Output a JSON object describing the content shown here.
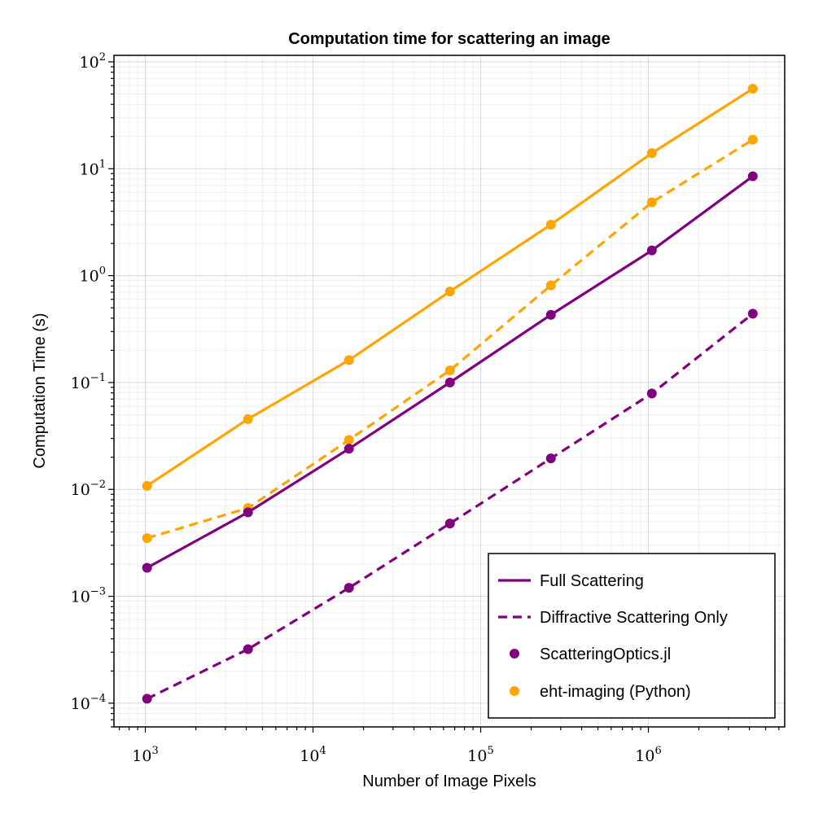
{
  "chart_data": {
    "type": "line",
    "title": "Computation time for scattering an image",
    "xlabel": "Number of Image Pixels",
    "ylabel": "Computation Time (s)",
    "x_scale": "log",
    "y_scale": "log",
    "xlim": [
      650,
      6500000
    ],
    "ylim": [
      6e-05,
      115
    ],
    "grid": true,
    "legend_position": "bottom-right",
    "x_ticks": [
      {
        "base": "10",
        "exp": "3",
        "value": 1000
      },
      {
        "base": "10",
        "exp": "4",
        "value": 10000
      },
      {
        "base": "10",
        "exp": "5",
        "value": 100000
      },
      {
        "base": "10",
        "exp": "6",
        "value": 1000000
      }
    ],
    "y_ticks": [
      {
        "base": "10",
        "exp": "−4",
        "value": 0.0001
      },
      {
        "base": "10",
        "exp": "−3",
        "value": 0.001
      },
      {
        "base": "10",
        "exp": "−2",
        "value": 0.01
      },
      {
        "base": "10",
        "exp": "−1",
        "value": 0.1
      },
      {
        "base": "10",
        "exp": "0",
        "value": 1
      },
      {
        "base": "10",
        "exp": "1",
        "value": 10
      },
      {
        "base": "10",
        "exp": "2",
        "value": 100
      }
    ],
    "x": [
      1024,
      4096,
      16384,
      65536,
      262144,
      1048576,
      4194304
    ],
    "series": [
      {
        "tool": "eht-imaging (Python)",
        "mode": "Full Scattering",
        "color": "#FFA500",
        "dash": "solid",
        "values": [
          0.0108,
          0.0455,
          0.162,
          0.71,
          3.0,
          14.0,
          56.0
        ]
      },
      {
        "tool": "eht-imaging (Python)",
        "mode": "Diffractive Scattering Only",
        "color": "#FFA500",
        "dash": "dashed",
        "values": [
          0.0035,
          0.0067,
          0.029,
          0.13,
          0.81,
          4.85,
          18.7
        ]
      },
      {
        "tool": "ScatteringOptics.jl",
        "mode": "Full Scattering",
        "color": "#800080",
        "dash": "solid",
        "values": [
          0.00185,
          0.0061,
          0.024,
          0.1,
          0.43,
          1.72,
          8.5
        ]
      },
      {
        "tool": "ScatteringOptics.jl",
        "mode": "Diffractive Scattering Only",
        "color": "#800080",
        "dash": "dashed",
        "values": [
          0.00011,
          0.00032,
          0.0012,
          0.0048,
          0.0195,
          0.079,
          0.44
        ]
      }
    ],
    "legend": [
      {
        "label": "Full Scattering",
        "kind": "line",
        "dash": "solid",
        "color": "#800080"
      },
      {
        "label": "Diffractive Scattering Only",
        "kind": "line",
        "dash": "dashed",
        "color": "#800080"
      },
      {
        "label": "ScatteringOptics.jl",
        "kind": "marker",
        "color": "#800080"
      },
      {
        "label": "eht-imaging (Python)",
        "kind": "marker",
        "color": "#FFA500"
      }
    ]
  }
}
